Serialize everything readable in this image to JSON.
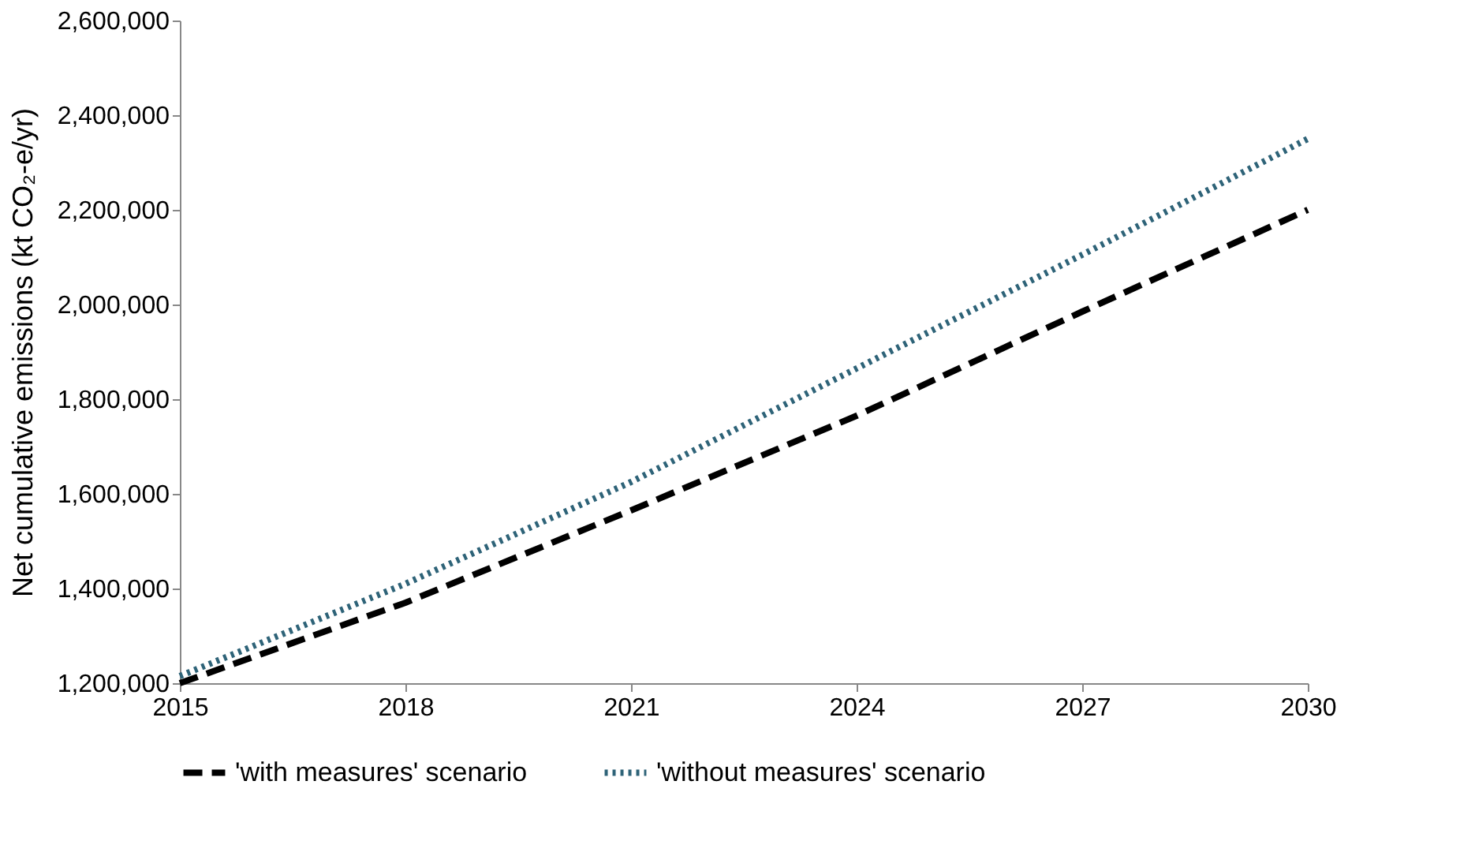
{
  "chart_data": {
    "type": "line",
    "ylabel": "Net cumulative  emissions (kt CO₂-e/yr)",
    "x": [
      2015,
      2018,
      2021,
      2024,
      2027,
      2030
    ],
    "series": [
      {
        "name": "'with measures' scenario",
        "color": "#000000",
        "line_style": "dashed",
        "values": [
          1200000,
          1370000,
          1565000,
          1765000,
          1985000,
          2200000
        ]
      },
      {
        "name": "'without measures' scenario",
        "color": "#2e6378",
        "line_style": "dotted",
        "values": [
          1215000,
          1410000,
          1625000,
          1865000,
          2105000,
          2350000
        ]
      }
    ],
    "xlim": [
      2015,
      2030
    ],
    "xticks": [
      2015,
      2018,
      2021,
      2024,
      2027,
      2030
    ],
    "ylim": [
      1200000,
      2600000
    ],
    "yticks": [
      {
        "value": 1200000,
        "label": "1,200,000"
      },
      {
        "value": 1400000,
        "label": "1,400,000"
      },
      {
        "value": 1600000,
        "label": "1,600,000"
      },
      {
        "value": 1800000,
        "label": "1,800,000"
      },
      {
        "value": 2000000,
        "label": "2,000,000"
      },
      {
        "value": 2200000,
        "label": "2,200,000"
      },
      {
        "value": 2400000,
        "label": "2,400,000"
      },
      {
        "value": 2600000,
        "label": "2,600,000"
      }
    ],
    "grid": false,
    "legend": "bottom",
    "marker": "none"
  }
}
